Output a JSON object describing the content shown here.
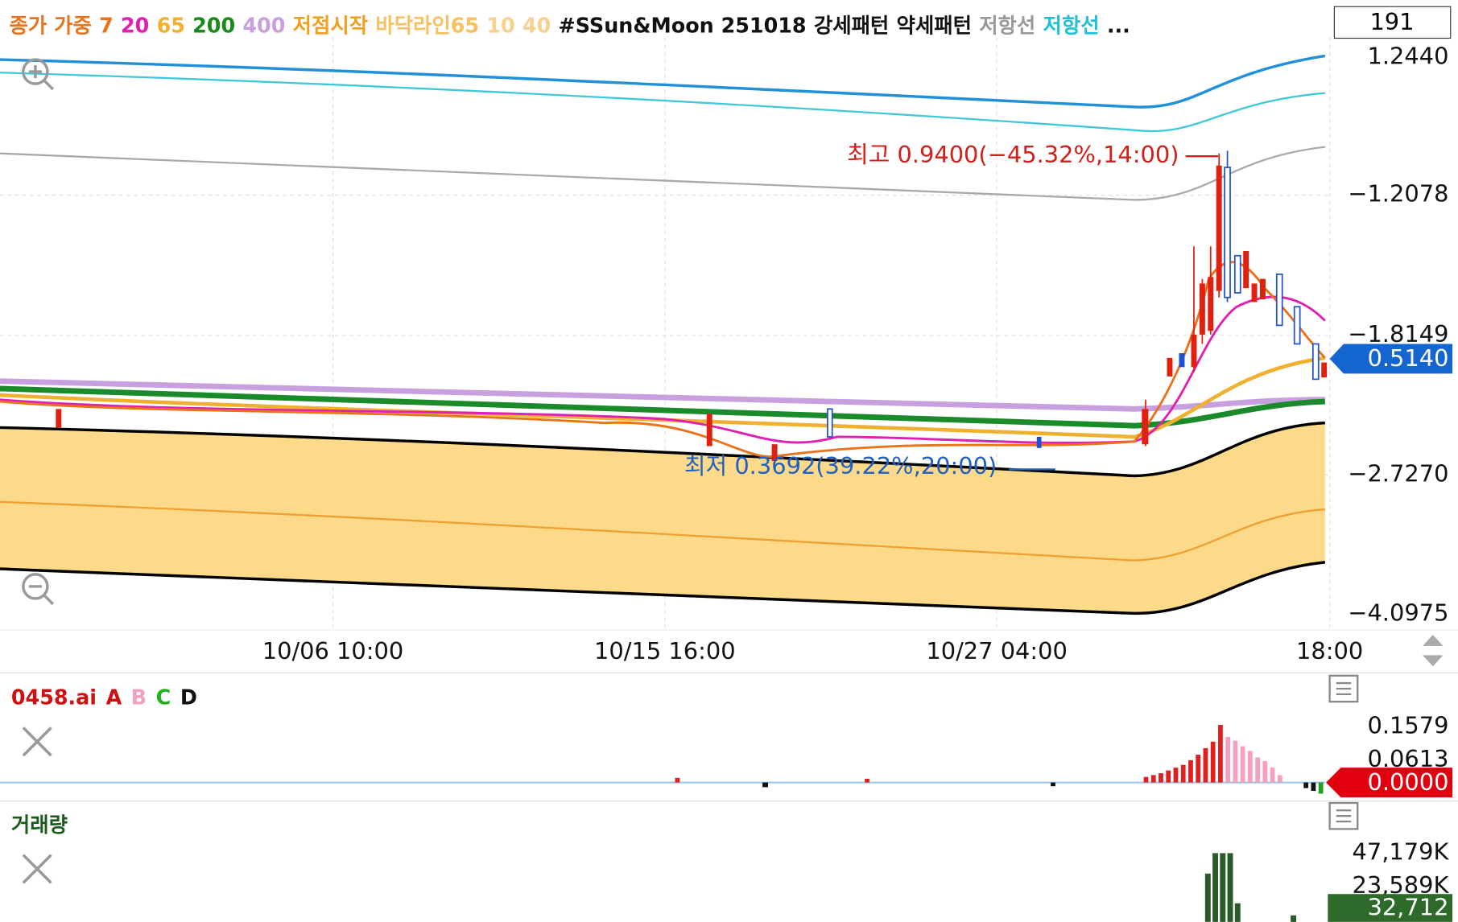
{
  "header": {
    "legend": [
      {
        "text": "종가 가중",
        "color": "#e8731a"
      },
      {
        "text": "7",
        "color": "#e8731a"
      },
      {
        "text": "20",
        "color": "#e020b0"
      },
      {
        "text": "65",
        "color": "#f0b030"
      },
      {
        "text": "200",
        "color": "#1a8a1a"
      },
      {
        "text": "400",
        "color": "#c8a0e0"
      },
      {
        "text": "저점시작",
        "color": "#f0a020"
      },
      {
        "text": "바닥라인65",
        "color": "#f8c060"
      },
      {
        "text": "10",
        "color": "#f8d090"
      },
      {
        "text": "40",
        "color": "#f8d090"
      },
      {
        "text": "#SSun&Moon 251018",
        "color": "#111111"
      },
      {
        "text": "강세패턴",
        "color": "#111111"
      },
      {
        "text": "약세패턴",
        "color": "#111111"
      },
      {
        "text": "저항선",
        "color": "#999999"
      },
      {
        "text": "저항선",
        "color": "#20c0d8"
      },
      {
        "text": "...",
        "color": "#111111"
      }
    ],
    "counter": "191"
  },
  "price_axis": {
    "labels": [
      "1.2440",
      "−1.2078",
      "−1.8149",
      "−2.7270",
      "−4.0975"
    ],
    "current": "0.5140"
  },
  "annotations": {
    "high": "최고 0.9400(−45.32%,14:00)",
    "low": "최저 0.3692(39.22%,20:00)"
  },
  "time_axis": [
    "10/06 10:00",
    "10/15 16:00",
    "10/27 04:00",
    "18:00"
  ],
  "indicator": {
    "legend": [
      {
        "text": "0458.ai",
        "color": "#d01010"
      },
      {
        "text": "A",
        "color": "#d01010"
      },
      {
        "text": "B",
        "color": "#f0a0c0"
      },
      {
        "text": "C",
        "color": "#20b020"
      },
      {
        "text": "D",
        "color": "#111111"
      }
    ],
    "axis": [
      "0.1579",
      "0.0613"
    ],
    "current": "0.0000"
  },
  "volume": {
    "title": "거래량",
    "axis": [
      "47,179K",
      "23,589K"
    ],
    "current": "32,712"
  }
}
